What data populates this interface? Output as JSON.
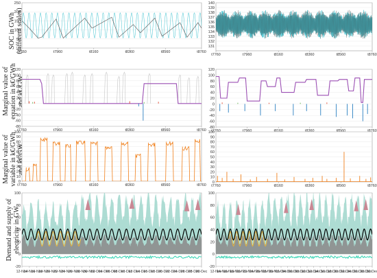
{
  "figure": {
    "row_labels": [
      [
        "SOC in GWh",
        "(different scales)"
      ],
      [
        "Marginal value of",
        "equation in k€/GWh",
        "and k€/GW"
      ],
      [
        "Marginal value of",
        "variable in k€/GWh",
        "and k€/GW"
      ],
      [
        "Demand and supply of",
        "electricity in GW"
      ]
    ]
  },
  "chart_data": [
    {
      "id": "soc-left",
      "type": "line",
      "title": "",
      "xlabel": "",
      "ylabel": "SOC in GWh (different scales)",
      "ylim": [
        0,
        250
      ],
      "yticks": [
        0,
        50,
        100,
        150,
        200,
        250
      ],
      "x_range": [
        7760,
        8760
      ],
      "xticks": [
        "t7760",
        "t7960",
        "t8160",
        "t8360",
        "t8560",
        "t8760"
      ],
      "grid": true,
      "series": [
        {
          "color": "#3ec1cf",
          "kind": "band-oscillation",
          "lower": 55,
          "upper": 195
        },
        {
          "color": "#666666",
          "kind": "sawtooth",
          "x": [
            7760,
            7800,
            7850,
            7870,
            7950,
            7990,
            8110,
            8150,
            8260,
            8300,
            8380,
            8420,
            8500,
            8540,
            8640,
            8680,
            8740,
            8760
          ],
          "y": [
            150,
            110,
            55,
            60,
            160,
            55,
            165,
            110,
            170,
            60,
            130,
            85,
            165,
            65,
            140,
            60,
            140,
            110
          ]
        }
      ]
    },
    {
      "id": "soc-right",
      "type": "line",
      "title": "",
      "xlabel": "",
      "ylabel": "",
      "ylim": [
        130,
        140
      ],
      "yticks": [
        131,
        132,
        133,
        134,
        135,
        136,
        137,
        138,
        139,
        140
      ],
      "x_range": [
        7760,
        8760
      ],
      "xticks": [
        "t7760",
        "t7960",
        "t8160",
        "t8360",
        "t8560",
        "t8760"
      ],
      "grid": true,
      "series": [
        {
          "color": "#3ec1cf",
          "kind": "fast-oscillation",
          "lower": 132.5,
          "upper": 138.5
        },
        {
          "color": "#444444",
          "kind": "fast-oscillation-outline",
          "lower": 132.5,
          "upper": 138.5
        }
      ]
    },
    {
      "id": "eq-left",
      "type": "line",
      "title": "",
      "xlabel": "",
      "ylabel": "Marginal value of equation in k€/GWh and k€/GW",
      "ylim": [
        -80,
        120
      ],
      "yticks": [
        -80,
        -60,
        -40,
        -20,
        0,
        20,
        40,
        60,
        80,
        100,
        120
      ],
      "x_range": [
        7760,
        8760
      ],
      "xticks": [
        "t7760",
        "t7960",
        "t8160",
        "t8360",
        "t8560",
        "t8760"
      ],
      "grid": true,
      "series": [
        {
          "color": "#cccccc",
          "kind": "gray-spikes",
          "peaks": [
            [
              7790,
              100
            ],
            [
              7905,
              105
            ],
            [
              7935,
              100
            ],
            [
              8010,
              105
            ],
            [
              8040,
              110
            ],
            [
              8110,
              100
            ],
            [
              8150,
              105
            ],
            [
              8230,
              110
            ],
            [
              8300,
              95
            ],
            [
              8330,
              110
            ],
            [
              8470,
              105
            ],
            [
              8640,
              100
            ],
            [
              8690,
              90
            ],
            [
              8740,
              95
            ]
          ]
        },
        {
          "color": "#9b4fb3",
          "kind": "steps",
          "x": [
            7760,
            7860,
            7870,
            7880,
            8430,
            8440,
            8620,
            8630,
            8760
          ],
          "y": [
            85,
            85,
            70,
            0,
            0,
            70,
            70,
            0,
            0
          ]
        },
        {
          "color": "#2a7fc1",
          "kind": "negative-spikes",
          "peaks": [
            [
              8435,
              -60
            ],
            [
              8410,
              -10
            ]
          ]
        },
        {
          "color": "#e0452c",
          "kind": "small-spikes",
          "peaks": [
            [
              7800,
              8
            ],
            [
              7830,
              6
            ],
            [
              8360,
              8
            ],
            [
              8520,
              6
            ]
          ]
        },
        {
          "color": "#60b14a",
          "kind": "small-spikes",
          "peaks": [
            [
              7820,
              5
            ],
            [
              8440,
              5
            ]
          ]
        }
      ]
    },
    {
      "id": "eq-right",
      "type": "line",
      "title": "",
      "xlabel": "",
      "ylabel": "",
      "ylim": [
        -80,
        120
      ],
      "yticks": [
        -80,
        -60,
        -40,
        -20,
        0,
        20,
        40,
        60,
        80,
        100,
        120
      ],
      "x_range": [
        7760,
        8760
      ],
      "xticks": [
        "t7760",
        "t7960",
        "t8160",
        "t8360",
        "t8560",
        "t8760"
      ],
      "grid": true,
      "series": [
        {
          "color": "#9b4fb3",
          "kind": "steps",
          "x": [
            7760,
            7780,
            7790,
            7830,
            7840,
            7900,
            7910,
            7950,
            7960,
            8040,
            8050,
            8080,
            8090,
            8140,
            8150,
            8170,
            8180,
            8260,
            8270,
            8330,
            8340,
            8400,
            8410,
            8480,
            8490,
            8540,
            8550,
            8600,
            8610,
            8640,
            8650,
            8680,
            8690,
            8700,
            8710,
            8760
          ],
          "y": [
            95,
            95,
            20,
            20,
            75,
            75,
            90,
            90,
            10,
            10,
            80,
            80,
            60,
            60,
            90,
            90,
            40,
            40,
            75,
            75,
            85,
            85,
            30,
            30,
            80,
            80,
            85,
            85,
            45,
            45,
            90,
            90,
            5,
            5,
            85,
            85
          ]
        },
        {
          "color": "#2a7fc1",
          "kind": "negative-spikes",
          "peaks": [
            [
              7785,
              -25
            ],
            [
              7840,
              -30
            ],
            [
              7945,
              -25
            ],
            [
              8045,
              -40
            ],
            [
              8140,
              -25
            ],
            [
              8255,
              -40
            ],
            [
              8340,
              -25
            ],
            [
              8430,
              -40
            ],
            [
              8530,
              -45
            ],
            [
              8600,
              -40
            ],
            [
              8635,
              -50
            ],
            [
              8700,
              -60
            ],
            [
              8730,
              -35
            ]
          ]
        },
        {
          "color": "#e0452c",
          "kind": "small-spikes",
          "peaks": [
            [
              7800,
              5
            ],
            [
              8100,
              4
            ],
            [
              8470,
              5
            ]
          ]
        },
        {
          "color": "#60b14a",
          "kind": "small-spikes",
          "peaks": [
            [
              7900,
              4
            ],
            [
              8300,
              4
            ]
          ]
        }
      ]
    },
    {
      "id": "var-left",
      "type": "line",
      "title": "",
      "xlabel": "",
      "ylabel": "Marginal value of variable in k€/GWh and k€/GW",
      "ylim": [
        0,
        100
      ],
      "yticks": [
        0,
        10,
        20,
        30,
        40,
        50,
        60,
        70,
        80,
        90,
        100
      ],
      "x_range": [
        7760,
        8760
      ],
      "xticks": [
        "t7760",
        "t7960",
        "t8160",
        "t8360",
        "t8560",
        "t8760"
      ],
      "grid": true,
      "series": [
        {
          "color": "#f07f1a",
          "kind": "plateaus",
          "blocks": [
            [
              7780,
              7800,
              28
            ],
            [
              7820,
              7840,
              35
            ],
            [
              7860,
              7900,
              88
            ],
            [
              7930,
              7970,
              80
            ],
            [
              8000,
              8030,
              75
            ],
            [
              8060,
              8110,
              82
            ],
            [
              8140,
              8180,
              80
            ],
            [
              8220,
              8260,
              70
            ],
            [
              8310,
              8350,
              80
            ],
            [
              8390,
              8420,
              55
            ],
            [
              8460,
              8500,
              78
            ],
            [
              8560,
              8600,
              80
            ],
            [
              8650,
              8690,
              70
            ],
            [
              8720,
              8750,
              85
            ]
          ]
        }
      ]
    },
    {
      "id": "var-right",
      "type": "line",
      "title": "",
      "xlabel": "",
      "ylabel": "",
      "ylim": [
        0,
        100
      ],
      "yticks": [
        0,
        10,
        20,
        30,
        40,
        50,
        60,
        70,
        80,
        90,
        100
      ],
      "x_range": [
        7760,
        8760
      ],
      "xticks": [
        "t7760",
        "t7960",
        "t8160",
        "t8360",
        "t8560",
        "t8760"
      ],
      "grid": true,
      "series": [
        {
          "color": "#f07f1a",
          "kind": "sparse-spikes",
          "peaks": [
            [
              7770,
              12
            ],
            [
              7800,
              8
            ],
            [
              7830,
              20
            ],
            [
              7870,
              6
            ],
            [
              7920,
              15
            ],
            [
              7980,
              5
            ],
            [
              8020,
              10
            ],
            [
              8090,
              6
            ],
            [
              8150,
              18
            ],
            [
              8200,
              5
            ],
            [
              8260,
              10
            ],
            [
              8330,
              6
            ],
            [
              8380,
              8
            ],
            [
              8440,
              12
            ],
            [
              8470,
              6
            ],
            [
              8530,
              8
            ],
            [
              8580,
              60
            ],
            [
              8620,
              7
            ],
            [
              8680,
              12
            ],
            [
              8720,
              6
            ],
            [
              8750,
              9
            ]
          ]
        }
      ]
    },
    {
      "id": "dem-left",
      "type": "area",
      "title": "",
      "xlabel": "",
      "ylabel": "Demand and supply of electricity in GW",
      "ylim": [
        -20,
        100
      ],
      "yticks": [
        -20,
        0,
        20,
        40,
        60,
        80,
        100
      ],
      "x_range": [
        0,
        49
      ],
      "xticks": [
        "12-Nov",
        "14-Nov",
        "16-Nov",
        "18-Nov",
        "20-Nov",
        "22-Nov",
        "24-Nov",
        "26-Nov",
        "28-Nov",
        "30-Nov",
        "02-Dec",
        "04-Dec",
        "06-Dec",
        "08-Dec",
        "10-Dec",
        "12-Dec",
        "14-Dec",
        "16-Dec",
        "18-Dec",
        "20-Dec",
        "22-Dec",
        "24-Dec",
        "26-Dec",
        "28-Dec",
        "30-Dec"
      ],
      "grid": true,
      "series": [
        {
          "color": "#9fd6cb",
          "kind": "teal-area"
        },
        {
          "color": "#c98894",
          "kind": "red-peaks",
          "peaks": [
            [
              18,
              90
            ],
            [
              30,
              92
            ],
            [
              45,
              88
            ],
            [
              48,
              90
            ]
          ]
        },
        {
          "color": "#8d8d8d",
          "kind": "gray-area"
        },
        {
          "color": "#e4b03a",
          "kind": "yellow-bumps"
        },
        {
          "color": "#32d3b2",
          "kind": "negative-teal"
        },
        {
          "color": "#000000",
          "kind": "demand-line",
          "mean": 32,
          "amp": 9
        }
      ]
    },
    {
      "id": "dem-right",
      "type": "area",
      "title": "",
      "xlabel": "",
      "ylabel": "",
      "ylim": [
        -20,
        100
      ],
      "yticks": [
        -20,
        0,
        20,
        40,
        60,
        80,
        100
      ],
      "x_range": [
        0,
        49
      ],
      "xticks": [
        "12-Nov",
        "14-Nov",
        "16-Nov",
        "18-Nov",
        "20-Nov",
        "22-Nov",
        "24-Nov",
        "26-Nov",
        "28-Nov",
        "30-Nov",
        "02-Dec",
        "04-Dec",
        "06-Dec",
        "08-Dec",
        "10-Dec",
        "12-Dec",
        "14-Dec",
        "16-Dec",
        "18-Dec",
        "20-Dec",
        "22-Dec",
        "24-Dec",
        "26-Dec",
        "28-Dec",
        "30-Dec"
      ],
      "grid": true,
      "series": [
        {
          "color": "#9fd6cb",
          "kind": "teal-area"
        },
        {
          "color": "#c98894",
          "kind": "red-peaks",
          "peaks": [
            [
              7,
              82
            ],
            [
              22,
              85
            ],
            [
              30,
              90
            ],
            [
              44,
              88
            ],
            [
              47,
              90
            ]
          ]
        },
        {
          "color": "#8d8d8d",
          "kind": "gray-area"
        },
        {
          "color": "#e4b03a",
          "kind": "yellow-bumps"
        },
        {
          "color": "#32d3b2",
          "kind": "negative-teal"
        },
        {
          "color": "#000000",
          "kind": "demand-line",
          "mean": 32,
          "amp": 9
        }
      ]
    }
  ]
}
